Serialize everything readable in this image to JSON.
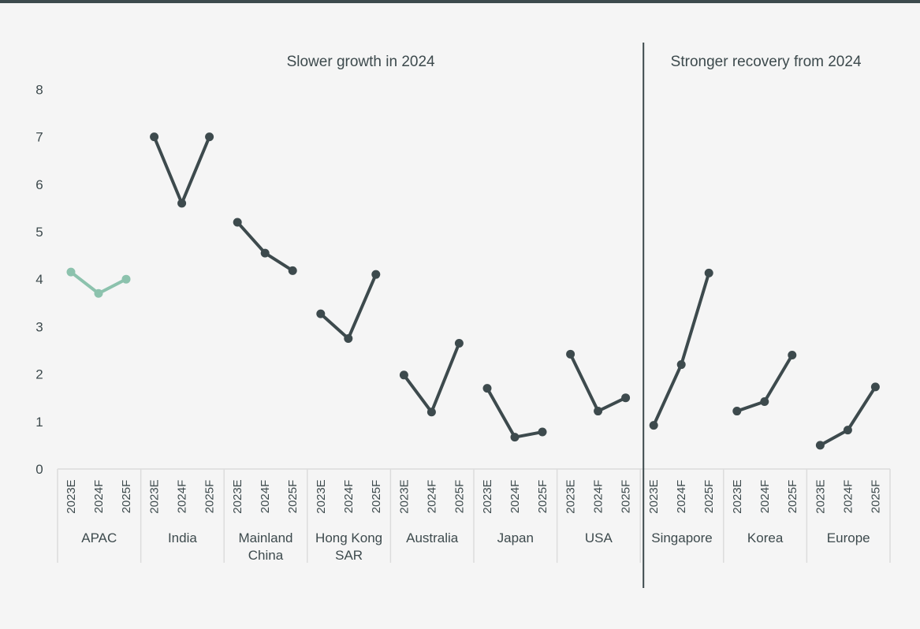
{
  "colors": {
    "background": "#f5f5f5",
    "top_border": "#3d4a4d",
    "series_dark": "#3d4a4d",
    "series_highlight": "#8cc2ad",
    "separator_grid": "#dcdcdc",
    "text": "#3d4a4d"
  },
  "chart_data": {
    "type": "line",
    "title": "",
    "xlabel": "",
    "ylabel": "",
    "ylim": [
      0,
      8
    ],
    "yticks": [
      0,
      1,
      2,
      3,
      4,
      5,
      6,
      7,
      8
    ],
    "grid": false,
    "legend": "none",
    "periods": [
      "2023E",
      "2024F",
      "2025F"
    ],
    "sections": [
      {
        "label": "Slower growth in 2024",
        "categories": [
          "APAC",
          "India",
          "Mainland China",
          "Hong Kong SAR",
          "Australia",
          "Japan",
          "USA"
        ]
      },
      {
        "label": "Stronger recovery from 2024",
        "categories": [
          "Singapore",
          "Korea",
          "Europe"
        ]
      }
    ],
    "groups": [
      {
        "label": [
          "APAC"
        ],
        "values": [
          4.15,
          3.7,
          4.0
        ],
        "highlight": true
      },
      {
        "label": [
          "India"
        ],
        "values": [
          7.0,
          5.6,
          7.0
        ],
        "highlight": false
      },
      {
        "label": [
          "Mainland",
          "China"
        ],
        "values": [
          5.2,
          4.55,
          4.18
        ],
        "highlight": false
      },
      {
        "label": [
          "Hong Kong",
          "SAR"
        ],
        "values": [
          3.27,
          2.75,
          4.1
        ],
        "highlight": false
      },
      {
        "label": [
          "Australia"
        ],
        "values": [
          1.98,
          1.2,
          2.65
        ],
        "highlight": false
      },
      {
        "label": [
          "Japan"
        ],
        "values": [
          1.7,
          0.67,
          0.78
        ],
        "highlight": false
      },
      {
        "label": [
          "USA"
        ],
        "values": [
          2.42,
          1.22,
          1.5
        ],
        "highlight": false
      },
      {
        "label": [
          "Singapore"
        ],
        "values": [
          0.92,
          2.2,
          4.13
        ],
        "highlight": false
      },
      {
        "label": [
          "Korea"
        ],
        "values": [
          1.22,
          1.42,
          2.4
        ],
        "highlight": false
      },
      {
        "label": [
          "Europe"
        ],
        "values": [
          0.5,
          0.82,
          1.73
        ],
        "highlight": false
      }
    ]
  }
}
